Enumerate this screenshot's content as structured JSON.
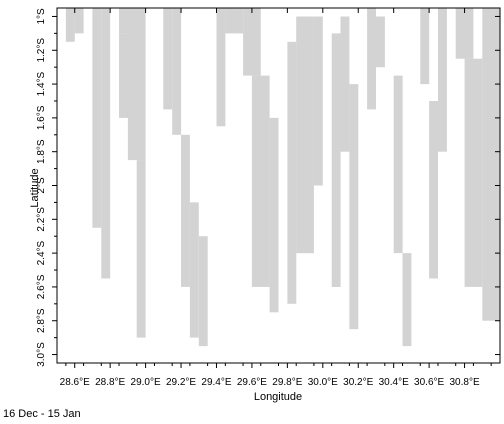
{
  "chart_data": {
    "type": "heatmap",
    "x_label": "Longitude",
    "y_label": "Latitude",
    "x_ticks": [
      "28.6°E",
      "28.8°E",
      "29.0°E",
      "29.2°E",
      "29.4°E",
      "29.6°E",
      "29.8°E",
      "30.0°E",
      "30.2°E",
      "30.4°E",
      "30.6°E",
      "30.8°E"
    ],
    "y_ticks": [
      "1°S",
      "1.2°S",
      "1.4°S",
      "1.6°S",
      "1.8°S",
      "2°S",
      "2.2°S",
      "2.4°S",
      "2.6°S",
      "2.8°S",
      "3.0°S"
    ],
    "x_range_deg_east": [
      28.5,
      31.0
    ],
    "y_range_deg_south": [
      0.95,
      3.05
    ],
    "grid": false,
    "coverage_color": "#d3d3d3",
    "background_color": "#ffffff",
    "coverage_runs_note": "Each entry: [longitude column east edge start (deg E), longitude end, latitude north edge (deg S), latitude south edge (deg S)] of shaded (grey) data-present blocks",
    "coverage_blocks": [
      [
        28.55,
        28.6,
        0.95,
        1.15
      ],
      [
        28.6,
        28.65,
        0.95,
        1.1
      ],
      [
        28.7,
        28.75,
        0.95,
        2.25
      ],
      [
        28.75,
        28.8,
        0.95,
        2.55
      ],
      [
        28.85,
        28.95,
        0.95,
        1.1
      ],
      [
        28.85,
        28.95,
        1.1,
        1.6
      ],
      [
        28.9,
        29.0,
        0.95,
        1.85
      ],
      [
        28.95,
        29.0,
        1.85,
        2.9
      ],
      [
        29.1,
        29.15,
        0.95,
        1.55
      ],
      [
        29.15,
        29.2,
        0.95,
        1.7
      ],
      [
        29.2,
        29.25,
        1.7,
        2.6
      ],
      [
        29.25,
        29.3,
        2.1,
        2.9
      ],
      [
        29.3,
        29.35,
        2.3,
        2.95
      ],
      [
        29.4,
        29.45,
        0.95,
        1.65
      ],
      [
        29.45,
        29.55,
        0.95,
        1.1
      ],
      [
        29.55,
        29.65,
        0.95,
        1.35
      ],
      [
        29.6,
        29.7,
        1.35,
        2.6
      ],
      [
        29.7,
        29.75,
        1.6,
        2.75
      ],
      [
        29.8,
        29.85,
        1.15,
        2.7
      ],
      [
        29.85,
        29.95,
        1.0,
        2.4
      ],
      [
        29.95,
        30.0,
        1.0,
        2.0
      ],
      [
        30.05,
        30.1,
        1.1,
        2.6
      ],
      [
        30.1,
        30.15,
        1.0,
        1.8
      ],
      [
        30.15,
        30.2,
        1.4,
        2.85
      ],
      [
        30.25,
        30.3,
        0.95,
        1.55
      ],
      [
        30.3,
        30.35,
        1.0,
        1.3
      ],
      [
        30.4,
        30.45,
        1.35,
        2.4
      ],
      [
        30.45,
        30.5,
        2.4,
        2.95
      ],
      [
        30.55,
        30.6,
        0.95,
        1.4
      ],
      [
        30.6,
        30.65,
        1.5,
        2.55
      ],
      [
        30.65,
        30.7,
        0.95,
        1.8
      ],
      [
        30.75,
        30.85,
        0.95,
        1.25
      ],
      [
        30.8,
        30.9,
        1.25,
        2.6
      ],
      [
        30.9,
        31.0,
        0.95,
        2.8
      ]
    ]
  },
  "caption": "16 Dec - 15 Jan"
}
